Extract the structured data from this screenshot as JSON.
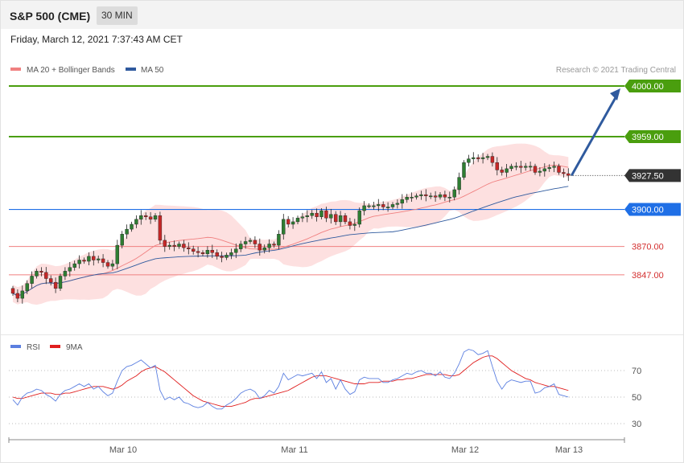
{
  "header": {
    "title": "S&P 500 (CME)",
    "timeframe": "30 MIN",
    "date": "Friday, March 12, 2021 7:37:43 AM CET"
  },
  "legend": {
    "ma20": "MA 20 + Bollinger Bands",
    "ma50": "MA 50",
    "rsi": "RSI",
    "rsi_ma": "9MA"
  },
  "copyright": "Research © 2021 Trading Central",
  "colors": {
    "up": "#2e7d32",
    "down": "#c62828",
    "bollinger": "#fde0e0",
    "ma20": "#f08080",
    "ma50": "#2f5a9e",
    "resistance": "#4a9e0e",
    "pivot": "#1f6fe6",
    "support": "#f07f7f",
    "current": "#333333",
    "rsi": "#5b7fe0",
    "rsi_ma": "#e01e1e"
  },
  "chart_data": {
    "type": "candlestick",
    "price_levels": [
      {
        "value": 4000.0,
        "label": "4000.00",
        "kind": "resistance"
      },
      {
        "value": 3959.0,
        "label": "3959.00",
        "kind": "resistance"
      },
      {
        "value": 3927.5,
        "label": "3927.50",
        "kind": "current"
      },
      {
        "value": 3900.0,
        "label": "3900.00",
        "kind": "pivot"
      },
      {
        "value": 3870.0,
        "label": "3870.00",
        "kind": "support"
      },
      {
        "value": 3847.0,
        "label": "3847.00",
        "kind": "support"
      }
    ],
    "close": [
      3832,
      3828,
      3834,
      3840,
      3846,
      3850,
      3849,
      3844,
      3841,
      3836,
      3846,
      3850,
      3853,
      3856,
      3859,
      3858,
      3862,
      3859,
      3860,
      3857,
      3854,
      3856,
      3871,
      3880,
      3884,
      3888,
      3892,
      3895,
      3894,
      3892,
      3895,
      3875,
      3870,
      3871,
      3870,
      3872,
      3869,
      3868,
      3866,
      3865,
      3864,
      3867,
      3865,
      3862,
      3861,
      3863,
      3865,
      3868,
      3872,
      3874,
      3875,
      3872,
      3867,
      3869,
      3872,
      3871,
      3880,
      3892,
      3888,
      3890,
      3893,
      3894,
      3895,
      3897,
      3894,
      3899,
      3893,
      3896,
      3890,
      3895,
      3890,
      3887,
      3888,
      3899,
      3903,
      3903,
      3903,
      3904,
      3902,
      3902,
      3904,
      3905,
      3908,
      3910,
      3910,
      3911,
      3912,
      3911,
      3911,
      3910,
      3912,
      3910,
      3910,
      3916,
      3926,
      3938,
      3941,
      3942,
      3941,
      3942,
      3943,
      3938,
      3932,
      3930,
      3933,
      3935,
      3935,
      3934,
      3935,
      3935,
      3930,
      3931,
      3933,
      3934,
      3935,
      3930,
      3929,
      3927.5
    ],
    "rsi": {
      "levels": [
        70,
        50,
        30
      ],
      "rsi_values": [
        48,
        44,
        50,
        53,
        54,
        56,
        55,
        52,
        50,
        47,
        52,
        55,
        56,
        58,
        60,
        58,
        60,
        56,
        58,
        54,
        51,
        53,
        62,
        70,
        73,
        74,
        76,
        78,
        75,
        72,
        74,
        55,
        48,
        50,
        48,
        50,
        46,
        45,
        43,
        42,
        43,
        46,
        43,
        41,
        41,
        44,
        46,
        49,
        53,
        55,
        56,
        54,
        49,
        51,
        55,
        53,
        58,
        68,
        63,
        65,
        67,
        66,
        67,
        68,
        64,
        69,
        61,
        64,
        56,
        63,
        56,
        52,
        54,
        63,
        65,
        64,
        64,
        64,
        61,
        61,
        63,
        64,
        66,
        68,
        67,
        69,
        70,
        68,
        68,
        66,
        69,
        65,
        64,
        68,
        75,
        84,
        86,
        85,
        82,
        83,
        85,
        73,
        62,
        56,
        61,
        63,
        62,
        61,
        62,
        62,
        53,
        54,
        57,
        58,
        60,
        52,
        51,
        50
      ],
      "ma_values": [
        50,
        49,
        49,
        50,
        51,
        52,
        53,
        53,
        53,
        52,
        52,
        53,
        53,
        54,
        55,
        56,
        57,
        58,
        58,
        58,
        57,
        56,
        57,
        59,
        62,
        64,
        66,
        69,
        71,
        72,
        73,
        71,
        69,
        66,
        63,
        60,
        57,
        54,
        51,
        49,
        47,
        46,
        45,
        44,
        43,
        43,
        43,
        44,
        45,
        46,
        48,
        49,
        49,
        50,
        51,
        52,
        53,
        54,
        55,
        57,
        59,
        61,
        63,
        65,
        66,
        66,
        66,
        65,
        64,
        63,
        62,
        61,
        60,
        60,
        60,
        61,
        61,
        61,
        62,
        62,
        62,
        63,
        63,
        64,
        64,
        65,
        66,
        67,
        67,
        67,
        67,
        67,
        66,
        66,
        67,
        70,
        73,
        76,
        78,
        80,
        81,
        81,
        79,
        76,
        73,
        70,
        68,
        66,
        64,
        63,
        61,
        60,
        59,
        58,
        58,
        57,
        56,
        55
      ]
    },
    "x_ticks": [
      "Mar 10",
      "Mar 11",
      "Mar 12",
      "Mar 13"
    ],
    "rsi_ticks": [
      "70",
      "50",
      "30"
    ]
  }
}
